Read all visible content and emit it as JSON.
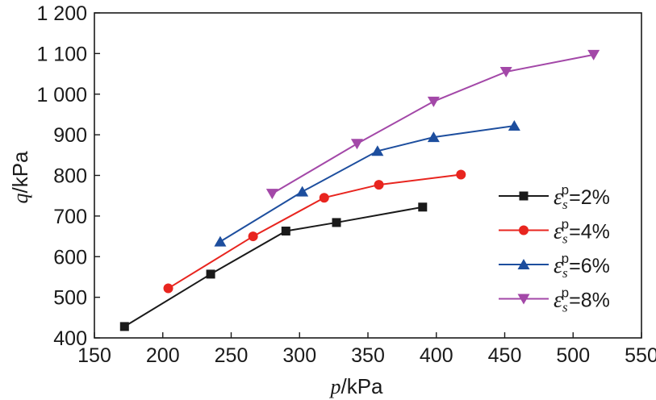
{
  "chart_data": {
    "type": "line",
    "title": "",
    "xlabel": {
      "var": "p",
      "unit": "/kPa"
    },
    "ylabel": {
      "var": "q",
      "unit": "/kPa"
    },
    "xlim": [
      150,
      550
    ],
    "ylim": [
      400,
      1200
    ],
    "xticks": [
      150,
      200,
      250,
      300,
      350,
      400,
      450,
      500,
      550
    ],
    "yticks": [
      400,
      500,
      600,
      700,
      800,
      900,
      1000,
      1100,
      1200
    ],
    "xtick_labels": [
      "150",
      "200",
      "250",
      "300",
      "350",
      "400",
      "450",
      "500",
      "550"
    ],
    "ytick_labels": [
      "400",
      "500",
      "600",
      "700",
      "800",
      "900",
      "1 000",
      "1 100",
      "1 200"
    ],
    "grid": false,
    "legend_position": "right",
    "series": [
      {
        "name": "εsp=2%",
        "legend": {
          "symbol": "ε",
          "sub": "s",
          "sup": "p",
          "value": "=2%"
        },
        "color": "#1a1a1a",
        "marker": "square",
        "x": [
          172,
          235,
          290,
          327,
          390
        ],
        "y": [
          428,
          557,
          663,
          684,
          722
        ]
      },
      {
        "name": "εsp=4%",
        "legend": {
          "symbol": "ε",
          "sub": "s",
          "sup": "p",
          "value": "=4%"
        },
        "color": "#e8251f",
        "marker": "circle",
        "x": [
          204,
          266,
          318,
          358,
          418
        ],
        "y": [
          522,
          650,
          745,
          777,
          802
        ]
      },
      {
        "name": "εsp=6%",
        "legend": {
          "symbol": "ε",
          "sub": "s",
          "sup": "p",
          "value": "=6%"
        },
        "color": "#1d4e9e",
        "marker": "triangle-up",
        "x": [
          242,
          302,
          357,
          398,
          457
        ],
        "y": [
          637,
          760,
          860,
          894,
          922
        ]
      },
      {
        "name": "εsp=8%",
        "legend": {
          "symbol": "ε",
          "sub": "s",
          "sup": "p",
          "value": "=8%"
        },
        "color": "#a348a8",
        "marker": "triangle-down",
        "x": [
          280,
          342,
          398,
          451,
          515
        ],
        "y": [
          755,
          878,
          982,
          1055,
          1097
        ]
      }
    ]
  }
}
